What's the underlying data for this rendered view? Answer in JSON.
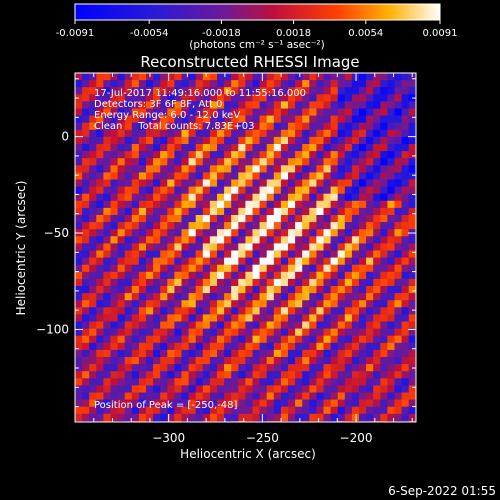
{
  "colorbar": {
    "ticks": [
      "-0.0091",
      "-0.0054",
      "-0.0018",
      "0.0018",
      "0.0054",
      "0.0091"
    ],
    "unit_label": "(photons cm⁻² s⁻¹ asec⁻²)",
    "range": [
      -0.0091,
      0.0091
    ]
  },
  "info": {
    "line1": "17-Jul-2017 11:49:16.000 to 11:55:16.000",
    "line2": "Detectors: 3F 6F 8F, Att 0",
    "line3": "Energy Range: 6.0 - 12.0 keV",
    "line4": "Clean     Total counts: 7.83E+03",
    "peak": "Position of Peak = [-250,-48]"
  },
  "footer": {
    "timestamp": "6-Sep-2022 01:55"
  },
  "chart_data": {
    "type": "heatmap",
    "title": "Reconstructed RHESSI Image",
    "xlabel": "Heliocentric X (arcsec)",
    "ylabel": "Heliocentric Y (arcsec)",
    "xlim": [
      -350,
      -168
    ],
    "ylim": [
      -148,
      33
    ],
    "xticks": [
      -300,
      -250,
      -200
    ],
    "xtick_labels": [
      "−300",
      "−250",
      "−200"
    ],
    "yticks": [
      0,
      -50,
      -100
    ],
    "yticks_labels": [
      "0",
      "−50",
      "−100"
    ],
    "peak_position": [
      -250,
      -48
    ],
    "value_range": [
      -0.0091,
      0.0091
    ],
    "colormap": "rhessi-blue-purple-red-yellow-white"
  }
}
